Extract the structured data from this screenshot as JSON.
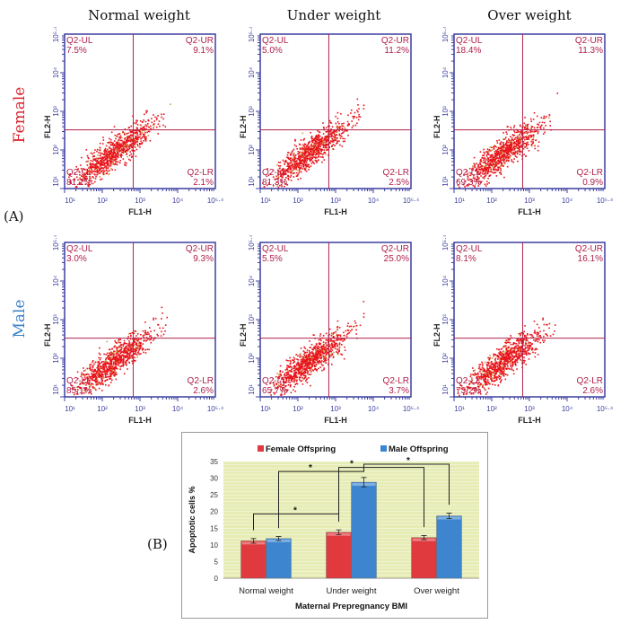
{
  "panel_a_label": "(A)",
  "panel_b_label": "(B)",
  "columns": [
    "Normal weight",
    "Under weight",
    "Over weight"
  ],
  "rows": [
    {
      "label": "Female",
      "color": "#d9232e"
    },
    {
      "label": "Male",
      "color": "#3a7fc8"
    }
  ],
  "flow_axes": {
    "x_label": "FL1-H",
    "y_label": "FL2-H",
    "ticks": [
      "10¹",
      "10²",
      "10³",
      "10⁴",
      "10⁵·⁴"
    ],
    "axis_color": "#3b3fa0",
    "gate_color": "#b0204a",
    "dot_color": "#e8141c"
  },
  "flow_plots": [
    {
      "row": "Female",
      "group": "Normal weight",
      "quadrants": {
        "UL": {
          "name": "Q2-UL",
          "value": "7.5%"
        },
        "UR": {
          "name": "Q2-UR",
          "value": "9.1%"
        },
        "LL": {
          "name": "Q2-LL",
          "value": "81.2%"
        },
        "LR": {
          "name": "Q2-LR",
          "value": "2.1%"
        }
      }
    },
    {
      "row": "Female",
      "group": "Under weight",
      "quadrants": {
        "UL": {
          "name": "Q2-UL",
          "value": "5.0%"
        },
        "UR": {
          "name": "Q2-UR",
          "value": "11.2%"
        },
        "LL": {
          "name": "Q2-LL",
          "value": "81.3%"
        },
        "LR": {
          "name": "Q2-LR",
          "value": "2.5%"
        }
      }
    },
    {
      "row": "Female",
      "group": "Over weight",
      "quadrants": {
        "UL": {
          "name": "Q2-UL",
          "value": "18.4%"
        },
        "UR": {
          "name": "Q2-UR",
          "value": "11.3%"
        },
        "LL": {
          "name": "Q2-LL",
          "value": "69.3%"
        },
        "LR": {
          "name": "Q2-LR",
          "value": "0.9%"
        }
      }
    },
    {
      "row": "Male",
      "group": "Normal weight",
      "quadrants": {
        "UL": {
          "name": "Q2-UL",
          "value": "3.0%"
        },
        "UR": {
          "name": "Q2-UR",
          "value": "9.3%"
        },
        "LL": {
          "name": "Q2-LL",
          "value": "85.1%"
        },
        "LR": {
          "name": "Q2-LR",
          "value": "2.6%"
        }
      }
    },
    {
      "row": "Male",
      "group": "Under weight",
      "quadrants": {
        "UL": {
          "name": "Q2-UL",
          "value": "5.5%"
        },
        "UR": {
          "name": "Q2-UR",
          "value": "25.0%"
        },
        "LL": {
          "name": "Q2-LL",
          "value": "65.7%"
        },
        "LR": {
          "name": "Q2-LR",
          "value": "3.7%"
        }
      }
    },
    {
      "row": "Male",
      "group": "Over weight",
      "quadrants": {
        "UL": {
          "name": "Q2-UL",
          "value": "8.1%"
        },
        "UR": {
          "name": "Q2-UR",
          "value": "16.1%"
        },
        "LL": {
          "name": "Q2-LL",
          "value": "73.2%"
        },
        "LR": {
          "name": "Q2-LR",
          "value": "2.6%"
        }
      }
    }
  ],
  "chart_data": {
    "type": "bar",
    "categories": [
      "Normal weight",
      "Under weight",
      "Over weight"
    ],
    "series": [
      {
        "name": "Female Offspring",
        "values": [
          11.2,
          13.8,
          12.2
        ],
        "errors": [
          0.7,
          0.7,
          0.6
        ],
        "color": "#e03a3e"
      },
      {
        "name": "Male Offspring",
        "values": [
          11.9,
          28.8,
          18.7
        ],
        "errors": [
          0.6,
          1.4,
          0.8
        ],
        "color": "#3d86cf"
      }
    ],
    "xlabel": "Maternal Prepregnancy BMI",
    "ylabel": "Apoptotic cells %",
    "ylim": [
      0,
      35
    ],
    "yticks": [
      "0",
      "5",
      "10",
      "15",
      "20",
      "25",
      "30",
      "35"
    ],
    "grid": true,
    "plot_background": "#e6ecb4",
    "legend": "top",
    "significance": [
      {
        "from": "Normal weight Female",
        "to": "Under weight Female",
        "label": "*"
      },
      {
        "from": "Normal weight Male",
        "to": "Under weight Male",
        "label": "*"
      },
      {
        "from": "Under weight Female",
        "to": "Over weight Female",
        "label": "*"
      },
      {
        "from": "Under weight Male",
        "to": "Over weight Male",
        "label": "*"
      }
    ]
  }
}
